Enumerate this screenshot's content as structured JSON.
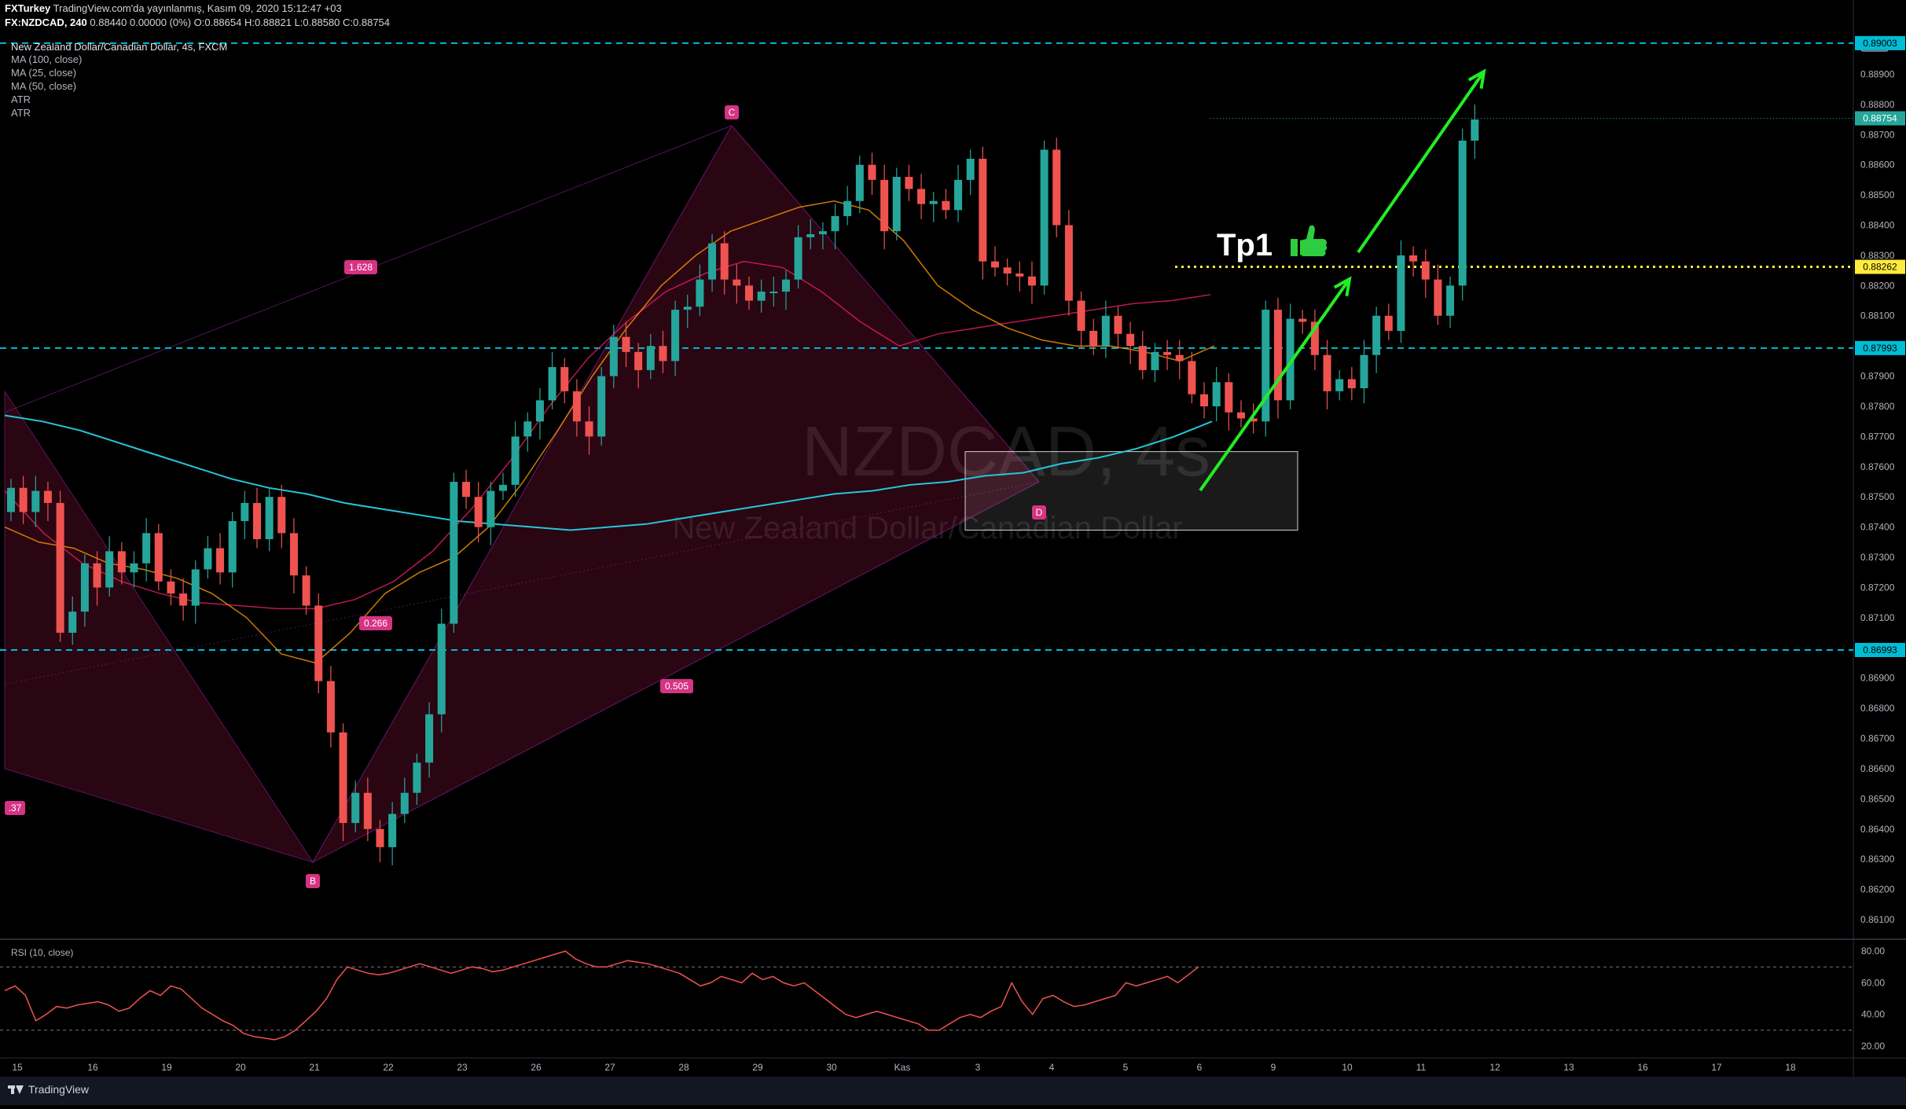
{
  "header": {
    "publisher": "FXTurkey",
    "published_on": "TradingView.com'da yayınlanmış, Kasım 09, 2020 15:12:47 +03",
    "symbol": "FX:NZDCAD, 240",
    "ohlc_line": "0.88440 0.00000 (0%) O:0.88654 H:0.88821 L:0.88580 C:0.88754"
  },
  "legend": {
    "title": "New Zealand Dollar/Canadian Dollar, 4s, FXCM",
    "indicators": [
      "MA (100, close)",
      "MA (25, close)",
      "MA (50, close)",
      "ATR",
      "ATR"
    ]
  },
  "watermark": {
    "symbol": "NZDCAD, 4s",
    "name": "New Zealand Dollar/Canadian Dollar"
  },
  "annotations": {
    "tp_label": "Tp1",
    "thumb_icon": "thumbs-up-icon",
    "pattern_points": [
      "B",
      "C",
      "D"
    ],
    "ratios": [
      "1.628",
      "0.266",
      "0.505",
      ".37"
    ]
  },
  "rsi": {
    "label": "RSI (10, close)",
    "ticks": [
      "80.00",
      "60.00",
      "40.00",
      "20.00"
    ],
    "upper_band": 70,
    "lower_band": 30
  },
  "price_axis": {
    "currency": "CAD",
    "ticks": [
      "0.88900",
      "0.88800",
      "0.88700",
      "0.88600",
      "0.88500",
      "0.88400",
      "0.88300",
      "0.88200",
      "0.88100",
      "0.88000",
      "0.87900",
      "0.87800",
      "0.87700",
      "0.87600",
      "0.87500",
      "0.87400",
      "0.87300",
      "0.87200",
      "0.87100",
      "0.87000",
      "0.86900",
      "0.86800",
      "0.86700",
      "0.86600",
      "0.86500",
      "0.86400",
      "0.86300",
      "0.86200",
      "0.86100"
    ],
    "badges": [
      {
        "text": "0.89003",
        "value": 0.89003,
        "color": "#00bcd4",
        "fg": "#000"
      },
      {
        "text": "0.88754",
        "value": 0.88754,
        "color": "#26a69a",
        "fg": "#fff"
      },
      {
        "text": "0.88262",
        "value": 0.88262,
        "color": "#ffeb3b",
        "fg": "#000"
      },
      {
        "text": "0.87993",
        "value": 0.87993,
        "color": "#00bcd4",
        "fg": "#000"
      },
      {
        "text": "0.86993",
        "value": 0.86993,
        "color": "#00bcd4",
        "fg": "#000"
      }
    ]
  },
  "time_axis": {
    "ticks": [
      "15",
      "16",
      "19",
      "20",
      "21",
      "22",
      "23",
      "26",
      "27",
      "28",
      "29",
      "30",
      "Kas",
      "3",
      "4",
      "5",
      "6",
      "9",
      "10",
      "11",
      "12",
      "13",
      "16",
      "17",
      "18"
    ]
  },
  "footer": {
    "brand": "TradingView"
  },
  "chart_data": {
    "type": "candlestick",
    "symbol": "NZDCAD",
    "timeframe": "4h",
    "ylim": [
      0.8605,
      0.8905
    ],
    "levels": {
      "resistance_top": 0.89003,
      "tp1": 0.88262,
      "support_mid": 0.87993,
      "support_low": 0.86993
    },
    "demand_zone": {
      "low": 0.8739,
      "high": 0.8765
    },
    "harmonic_points": {
      "X": 0.8785,
      "A": 0.8675,
      "B": 0.8629,
      "C": 0.8873,
      "D": 0.8755
    },
    "candles_close": [
      0.8753,
      0.8745,
      0.8752,
      0.8748,
      0.8705,
      0.8712,
      0.8728,
      0.872,
      0.8732,
      0.8725,
      0.8728,
      0.8738,
      0.8722,
      0.8718,
      0.8714,
      0.8726,
      0.8733,
      0.8725,
      0.8742,
      0.8748,
      0.8736,
      0.875,
      0.8738,
      0.8724,
      0.8714,
      0.8689,
      0.8672,
      0.8642,
      0.8652,
      0.864,
      0.8634,
      0.8645,
      0.8652,
      0.8662,
      0.8678,
      0.8708,
      0.8755,
      0.875,
      0.874,
      0.8752,
      0.8754,
      0.877,
      0.8775,
      0.8782,
      0.8793,
      0.8785,
      0.8775,
      0.877,
      0.879,
      0.8803,
      0.8798,
      0.8792,
      0.88,
      0.8795,
      0.8812,
      0.8813,
      0.8822,
      0.8834,
      0.8822,
      0.882,
      0.8815,
      0.8818,
      0.8818,
      0.8822,
      0.8836,
      0.8837,
      0.8838,
      0.8843,
      0.8848,
      0.886,
      0.8855,
      0.8838,
      0.8856,
      0.8852,
      0.8847,
      0.8848,
      0.8845,
      0.8855,
      0.8862,
      0.8828,
      0.8826,
      0.8824,
      0.8823,
      0.882,
      0.8865,
      0.884,
      0.8815,
      0.8805,
      0.88,
      0.881,
      0.8804,
      0.88,
      0.8792,
      0.8798,
      0.8797,
      0.8795,
      0.8784,
      0.878,
      0.8788,
      0.8778,
      0.8776,
      0.8775,
      0.8812,
      0.8782,
      0.8809,
      0.8808,
      0.8797,
      0.8785,
      0.8789,
      0.8786,
      0.8797,
      0.881,
      0.8805,
      0.883,
      0.8828,
      0.8822,
      0.881,
      0.882,
      0.8868,
      0.8875
    ],
    "rsi_values": [
      55,
      58,
      52,
      36,
      40,
      45,
      44,
      46,
      47,
      48,
      46,
      42,
      44,
      50,
      55,
      52,
      58,
      56,
      50,
      44,
      40,
      36,
      33,
      28,
      26,
      25,
      24,
      26,
      30,
      36,
      42,
      50,
      62,
      70,
      68,
      66,
      65,
      66,
      68,
      70,
      72,
      70,
      68,
      66,
      68,
      70,
      69,
      67,
      68,
      70,
      72,
      74,
      76,
      78,
      80,
      75,
      72,
      70,
      70,
      72,
      74,
      73,
      72,
      70,
      68,
      66,
      62,
      58,
      60,
      64,
      62,
      60,
      66,
      62,
      64,
      60,
      58,
      60,
      55,
      50,
      45,
      40,
      38,
      40,
      42,
      40,
      38,
      36,
      34,
      30,
      30,
      34,
      38,
      40,
      38,
      42,
      45,
      60,
      48,
      40,
      50,
      52,
      48,
      45,
      46,
      48,
      50,
      52,
      60,
      58,
      60,
      62,
      64,
      60,
      65,
      70
    ],
    "ma_100": [
      0.8777,
      0.8775,
      0.8772,
      0.8768,
      0.8764,
      0.876,
      0.8756,
      0.8753,
      0.8751,
      0.8748,
      0.8746,
      0.8744,
      0.8742,
      0.8741,
      0.874,
      0.8739,
      0.874,
      0.8741,
      0.8743,
      0.8745,
      0.8747,
      0.8749,
      0.8751,
      0.8752,
      0.8754,
      0.8755,
      0.8757,
      0.8758,
      0.8761,
      0.8763,
      0.8766,
      0.877,
      0.8775
    ],
    "ma_50": [
      0.8752,
      0.8738,
      0.8728,
      0.8722,
      0.8718,
      0.8715,
      0.8714,
      0.8713,
      0.8713,
      0.8716,
      0.8722,
      0.8732,
      0.8746,
      0.8762,
      0.878,
      0.8796,
      0.8808,
      0.8818,
      0.8824,
      0.8828,
      0.8826,
      0.8818,
      0.8808,
      0.88,
      0.8804,
      0.8806,
      0.8808,
      0.881,
      0.8812,
      0.8814,
      0.8815,
      0.8817
    ],
    "ma_25": [
      0.874,
      0.8735,
      0.8733,
      0.8728,
      0.8726,
      0.8723,
      0.8718,
      0.871,
      0.8698,
      0.8695,
      0.8705,
      0.8718,
      0.8725,
      0.873,
      0.874,
      0.8755,
      0.8772,
      0.879,
      0.8806,
      0.882,
      0.883,
      0.8838,
      0.8842,
      0.8846,
      0.8848,
      0.8845,
      0.8835,
      0.882,
      0.8812,
      0.8806,
      0.8802,
      0.88,
      0.88,
      0.8798,
      0.8795,
      0.88
    ]
  }
}
